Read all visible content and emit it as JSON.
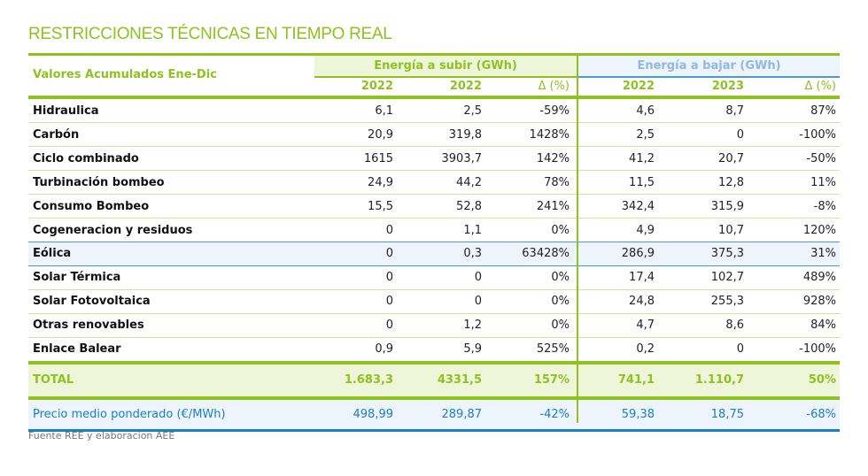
{
  "title": "RESTRICCIONES TÉCNICAS EN TIEMPO REAL",
  "header": {
    "row_label": "Valores Acumulados Ene-Dic",
    "group_up": "Energía a subir (GWh)",
    "group_down": "Energía a bajar (GWh)",
    "columns": [
      "2022",
      "2022",
      "Δ (%)",
      "2022",
      "2023",
      "Δ (%)"
    ]
  },
  "rows": [
    {
      "label": "Hidraulica",
      "values": [
        "6,1",
        "2,5",
        "-59%",
        "4,6",
        "8,7",
        "87%"
      ]
    },
    {
      "label": "Carbón",
      "values": [
        "20,9",
        "319,8",
        "1428%",
        "2,5",
        "0",
        "-100%"
      ]
    },
    {
      "label": "Ciclo combinado",
      "values": [
        "1615",
        "3903,7",
        "142%",
        "41,2",
        "20,7",
        "-50%"
      ]
    },
    {
      "label": "Turbinación bombeo",
      "values": [
        "24,9",
        "44,2",
        "78%",
        "11,5",
        "12,8",
        "11%"
      ]
    },
    {
      "label": "Consumo Bombeo",
      "values": [
        "15,5",
        "52,8",
        "241%",
        "342,4",
        "315,9",
        "-8%"
      ]
    },
    {
      "label": "Cogeneracion y residuos",
      "values": [
        "0",
        "1,1",
        "0%",
        "4,9",
        "10,7",
        "120%"
      ]
    },
    {
      "label": "Eólica",
      "values": [
        "0",
        "0,3",
        "63428%",
        "286,9",
        "375,3",
        "31%"
      ],
      "highlight": true
    },
    {
      "label": "Solar Térmica",
      "values": [
        "0",
        "0",
        "0%",
        "17,4",
        "102,7",
        "489%"
      ]
    },
    {
      "label": "Solar Fotovoltaica",
      "values": [
        "0",
        "0",
        "0%",
        "24,8",
        "255,3",
        "928%"
      ]
    },
    {
      "label": "Otras renovables",
      "values": [
        "0",
        "1,2",
        "0%",
        "4,7",
        "8,6",
        "84%"
      ]
    },
    {
      "label": "Enlace Balear",
      "values": [
        "0,9",
        "5,9",
        "525%",
        "0,2",
        "0",
        "-100%"
      ]
    }
  ],
  "total": {
    "label": "TOTAL",
    "values": [
      "1.683,3",
      "4331,5",
      "157%",
      "741,1",
      "1.110,7",
      "50%"
    ]
  },
  "price": {
    "label": "Precio medio ponderado (€/MWh)",
    "values": [
      "498,99",
      "289,87",
      "-42%",
      "59,38",
      "18,75",
      "-68%"
    ]
  },
  "footer": "Fuente REE y elaboracion AEE",
  "colors": {
    "green": "#8dc21f",
    "blue": "#1a7fc1"
  }
}
